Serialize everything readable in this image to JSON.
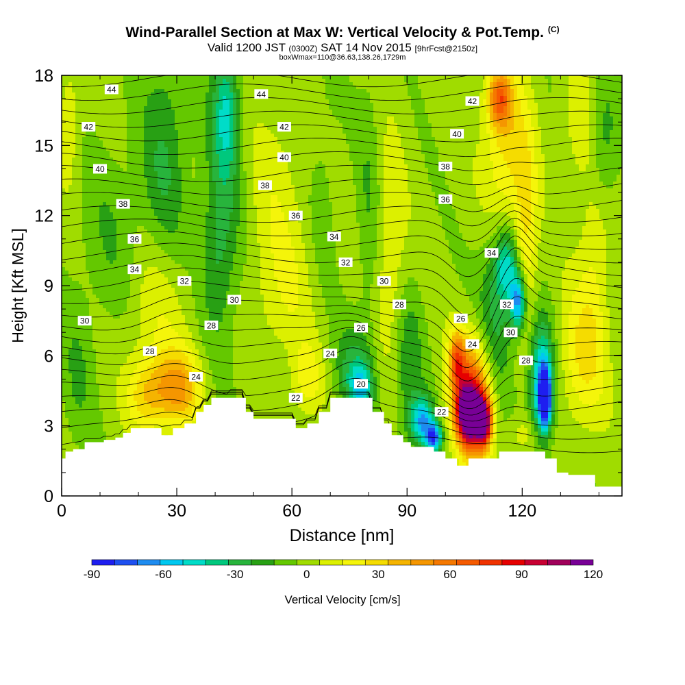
{
  "header": {
    "title": "Wind-Parallel Section at Max W: Vertical Velocity & Pot.Temp.",
    "title_mark": "(C)",
    "valid_prefix": "Valid 1200 JST",
    "valid_z": "(0300Z)",
    "valid_date": "SAT 14 Nov 2015",
    "forecast": "[9hrFcst@2150z]",
    "box_info": "boxWmax=110@36.63,138.26,1729m"
  },
  "chart_data": {
    "type": "heatmap",
    "xlabel": "Distance [nm]",
    "ylabel": "Height [Kft MSL]",
    "xlim": [
      0,
      146
    ],
    "ylim": [
      0,
      18
    ],
    "x_ticks": [
      0,
      30,
      60,
      90,
      120
    ],
    "y_ticks": [
      0,
      3,
      6,
      9,
      12,
      15,
      18
    ],
    "colorbar": {
      "label": "Vertical Velocity [cm/s]",
      "min": -90,
      "max": 120,
      "step": 10,
      "tick_values": [
        -90,
        -60,
        -30,
        0,
        30,
        60,
        90,
        120
      ],
      "colors": [
        "#1e1ef0",
        "#1e50f0",
        "#1e8cf0",
        "#00c8f0",
        "#00dcc8",
        "#00c87d",
        "#28b43c",
        "#28a014",
        "#64c800",
        "#a0dc00",
        "#dcf000",
        "#f5f50a",
        "#f5dc00",
        "#f5b400",
        "#f59600",
        "#f57800",
        "#f55a00",
        "#f03200",
        "#e60000",
        "#c80032",
        "#a0005a",
        "#780096"
      ]
    },
    "terrain_kft": [
      [
        0,
        1.6
      ],
      [
        1,
        1.6
      ],
      [
        1,
        1.9
      ],
      [
        3,
        1.9
      ],
      [
        3,
        2.0
      ],
      [
        6,
        2.0
      ],
      [
        6,
        2.3
      ],
      [
        11,
        2.3
      ],
      [
        11,
        2.4
      ],
      [
        14,
        2.4
      ],
      [
        14,
        2.5
      ],
      [
        16,
        2.5
      ],
      [
        16,
        2.7
      ],
      [
        18,
        2.7
      ],
      [
        18,
        2.9
      ],
      [
        26,
        2.9
      ],
      [
        26,
        2.6
      ],
      [
        29,
        2.6
      ],
      [
        29,
        2.9
      ],
      [
        32,
        2.9
      ],
      [
        32,
        3.1
      ],
      [
        35,
        3.1
      ],
      [
        35,
        3.6
      ],
      [
        37,
        3.6
      ],
      [
        37,
        3.9
      ],
      [
        39,
        3.9
      ],
      [
        39,
        4.2
      ],
      [
        48,
        4.2
      ],
      [
        48,
        3.6
      ],
      [
        50,
        3.6
      ],
      [
        50,
        3.3
      ],
      [
        61,
        3.3
      ],
      [
        61,
        2.9
      ],
      [
        64,
        2.9
      ],
      [
        64,
        3.1
      ],
      [
        67,
        3.1
      ],
      [
        67,
        3.6
      ],
      [
        70,
        3.6
      ],
      [
        70,
        4.2
      ],
      [
        81,
        4.2
      ],
      [
        81,
        3.6
      ],
      [
        84,
        3.6
      ],
      [
        84,
        3.1
      ],
      [
        86,
        3.1
      ],
      [
        86,
        2.6
      ],
      [
        89,
        2.6
      ],
      [
        89,
        2.3
      ],
      [
        91,
        2.3
      ],
      [
        91,
        2.1
      ],
      [
        97,
        2.1
      ],
      [
        97,
        1.9
      ],
      [
        100,
        1.9
      ],
      [
        100,
        1.6
      ],
      [
        103,
        1.6
      ],
      [
        103,
        1.3
      ],
      [
        106,
        1.3
      ],
      [
        106,
        1.6
      ],
      [
        114,
        1.6
      ],
      [
        114,
        1.9
      ],
      [
        126,
        1.9
      ],
      [
        126,
        1.6
      ],
      [
        129,
        1.6
      ],
      [
        129,
        1.0
      ],
      [
        132,
        1.0
      ],
      [
        132,
        0.9
      ],
      [
        139,
        0.9
      ],
      [
        139,
        0.4
      ],
      [
        146,
        0.4
      ]
    ],
    "w_blobs": [
      {
        "x": 25,
        "y": 8.2,
        "rx": 8,
        "ry": 3.6,
        "w": 22
      },
      {
        "x": 30,
        "y": 4.6,
        "rx": 6,
        "ry": 1.6,
        "w": 48
      },
      {
        "x": 22,
        "y": 4.3,
        "rx": 5,
        "ry": 1.5,
        "w": 30
      },
      {
        "x": 14,
        "y": 11,
        "rx": 10,
        "ry": 4,
        "w": -12
      },
      {
        "x": 2,
        "y": 16,
        "rx": 3,
        "ry": 3,
        "w": 15
      },
      {
        "x": 4,
        "y": 5,
        "rx": 4,
        "ry": 3,
        "w": -12
      },
      {
        "x": 27,
        "y": 14,
        "rx": 6,
        "ry": 6,
        "w": -22
      },
      {
        "x": 42,
        "y": 13,
        "rx": 5,
        "ry": 6,
        "w": -22
      },
      {
        "x": 43,
        "y": 16.5,
        "rx": 3,
        "ry": 2.5,
        "w": -32
      },
      {
        "x": 40,
        "y": 10,
        "rx": 4,
        "ry": 3,
        "w": -12
      },
      {
        "x": 56,
        "y": 13,
        "rx": 8,
        "ry": 4,
        "w": 12
      },
      {
        "x": 58,
        "y": 8.5,
        "rx": 8,
        "ry": 3,
        "w": 14
      },
      {
        "x": 64,
        "y": 5,
        "rx": 4,
        "ry": 1.6,
        "w": 22
      },
      {
        "x": 68,
        "y": 13,
        "rx": 4,
        "ry": 5,
        "w": -8
      },
      {
        "x": 76,
        "y": 5.4,
        "rx": 5,
        "ry": 1.8,
        "w": -25
      },
      {
        "x": 78,
        "y": 4.6,
        "rx": 3,
        "ry": 1,
        "w": -40
      },
      {
        "x": 80,
        "y": 12,
        "rx": 3,
        "ry": 6,
        "w": -12
      },
      {
        "x": 86,
        "y": 10,
        "rx": 4,
        "ry": 5,
        "w": 18
      },
      {
        "x": 90,
        "y": 5.5,
        "rx": 4,
        "ry": 3.5,
        "w": -22
      },
      {
        "x": 94,
        "y": 3.2,
        "rx": 3,
        "ry": 1,
        "w": -60
      },
      {
        "x": 97,
        "y": 2.5,
        "rx": 2,
        "ry": 0.6,
        "w": -75
      },
      {
        "x": 107,
        "y": 4.2,
        "rx": 5,
        "ry": 2.6,
        "w": 78
      },
      {
        "x": 106,
        "y": 3.5,
        "rx": 3,
        "ry": 1.2,
        "w": 118
      },
      {
        "x": 110,
        "y": 3.2,
        "rx": 2,
        "ry": 1,
        "w": 105
      },
      {
        "x": 103,
        "y": 5.8,
        "rx": 2,
        "ry": 1.2,
        "w": 55
      },
      {
        "x": 113,
        "y": 7.5,
        "rx": 5,
        "ry": 3.5,
        "w": -28
      },
      {
        "x": 116,
        "y": 9.8,
        "rx": 3,
        "ry": 1.5,
        "w": -45
      },
      {
        "x": 119,
        "y": 8.3,
        "rx": 2,
        "ry": 1.2,
        "w": -68
      },
      {
        "x": 125,
        "y": 4.8,
        "rx": 3,
        "ry": 2.5,
        "w": -65
      },
      {
        "x": 126,
        "y": 4.2,
        "rx": 1.5,
        "ry": 1.2,
        "w": -88
      },
      {
        "x": 116,
        "y": 15,
        "rx": 6,
        "ry": 3.5,
        "w": 32
      },
      {
        "x": 114,
        "y": 17,
        "rx": 3,
        "ry": 1.2,
        "w": 58
      },
      {
        "x": 121,
        "y": 11,
        "rx": 3,
        "ry": 4,
        "w": 28
      },
      {
        "x": 136,
        "y": 6,
        "rx": 6,
        "ry": 3,
        "w": 28
      },
      {
        "x": 139,
        "y": 11,
        "rx": 4,
        "ry": 4,
        "w": 18
      },
      {
        "x": 141,
        "y": 15,
        "rx": 4,
        "ry": 3,
        "w": -22
      },
      {
        "x": 135,
        "y": 16,
        "rx": 4,
        "ry": 2.5,
        "w": 16
      },
      {
        "x": 121,
        "y": 2.6,
        "rx": 5,
        "ry": 0.8,
        "w": 14
      }
    ],
    "contour_labels": [
      {
        "text": "44",
        "x": 13,
        "y": 17.4
      },
      {
        "text": "44",
        "x": 52,
        "y": 17.2
      },
      {
        "text": "42",
        "x": 7,
        "y": 15.8
      },
      {
        "text": "42",
        "x": 58,
        "y": 15.8
      },
      {
        "text": "42",
        "x": 107,
        "y": 16.9
      },
      {
        "text": "40",
        "x": 10,
        "y": 14.0
      },
      {
        "text": "40",
        "x": 58,
        "y": 14.5
      },
      {
        "text": "40",
        "x": 103,
        "y": 15.5
      },
      {
        "text": "38",
        "x": 16,
        "y": 12.5
      },
      {
        "text": "38",
        "x": 53,
        "y": 13.3
      },
      {
        "text": "38",
        "x": 100,
        "y": 14.1
      },
      {
        "text": "36",
        "x": 19,
        "y": 11.0
      },
      {
        "text": "36",
        "x": 61,
        "y": 12.0
      },
      {
        "text": "36",
        "x": 100,
        "y": 12.7
      },
      {
        "text": "34",
        "x": 19,
        "y": 9.7
      },
      {
        "text": "34",
        "x": 71,
        "y": 11.1
      },
      {
        "text": "34",
        "x": 112,
        "y": 10.4
      },
      {
        "text": "32",
        "x": 32,
        "y": 9.2
      },
      {
        "text": "32",
        "x": 74,
        "y": 10.0
      },
      {
        "text": "32",
        "x": 116,
        "y": 8.2
      },
      {
        "text": "30",
        "x": 6,
        "y": 7.5
      },
      {
        "text": "30",
        "x": 45,
        "y": 8.4
      },
      {
        "text": "30",
        "x": 84,
        "y": 9.2
      },
      {
        "text": "30",
        "x": 117,
        "y": 7.0
      },
      {
        "text": "28",
        "x": 23,
        "y": 6.2
      },
      {
        "text": "28",
        "x": 39,
        "y": 7.3
      },
      {
        "text": "28",
        "x": 88,
        "y": 8.2
      },
      {
        "text": "28",
        "x": 121,
        "y": 5.8
      },
      {
        "text": "26",
        "x": 78,
        "y": 7.2
      },
      {
        "text": "26",
        "x": 104,
        "y": 7.6
      },
      {
        "text": "24",
        "x": 35,
        "y": 5.1
      },
      {
        "text": "24",
        "x": 70,
        "y": 6.1
      },
      {
        "text": "24",
        "x": 107,
        "y": 6.5
      },
      {
        "text": "22",
        "x": 61,
        "y": 4.2
      },
      {
        "text": "22",
        "x": 99,
        "y": 3.6
      },
      {
        "text": "20",
        "x": 78,
        "y": 4.8
      }
    ]
  }
}
